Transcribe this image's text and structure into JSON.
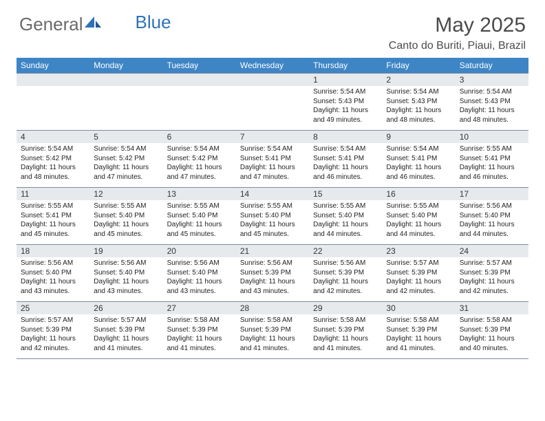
{
  "logo": {
    "part1": "General",
    "part2": "Blue"
  },
  "title": "May 2025",
  "location": "Canto do Buriti, Piaui, Brazil",
  "colors": {
    "header_bg": "#3e85c6",
    "header_text": "#ffffff",
    "num_row_bg": "#e7eaed",
    "border": "#7a8aa0",
    "logo_gray": "#6a6a6a",
    "logo_blue": "#2d72b8"
  },
  "day_names": [
    "Sunday",
    "Monday",
    "Tuesday",
    "Wednesday",
    "Thursday",
    "Friday",
    "Saturday"
  ],
  "weeks": [
    [
      {
        "n": "",
        "sr": "",
        "ss": "",
        "dl": ""
      },
      {
        "n": "",
        "sr": "",
        "ss": "",
        "dl": ""
      },
      {
        "n": "",
        "sr": "",
        "ss": "",
        "dl": ""
      },
      {
        "n": "",
        "sr": "",
        "ss": "",
        "dl": ""
      },
      {
        "n": "1",
        "sr": "5:54 AM",
        "ss": "5:43 PM",
        "dl": "11 hours and 49 minutes."
      },
      {
        "n": "2",
        "sr": "5:54 AM",
        "ss": "5:43 PM",
        "dl": "11 hours and 48 minutes."
      },
      {
        "n": "3",
        "sr": "5:54 AM",
        "ss": "5:43 PM",
        "dl": "11 hours and 48 minutes."
      }
    ],
    [
      {
        "n": "4",
        "sr": "5:54 AM",
        "ss": "5:42 PM",
        "dl": "11 hours and 48 minutes."
      },
      {
        "n": "5",
        "sr": "5:54 AM",
        "ss": "5:42 PM",
        "dl": "11 hours and 47 minutes."
      },
      {
        "n": "6",
        "sr": "5:54 AM",
        "ss": "5:42 PM",
        "dl": "11 hours and 47 minutes."
      },
      {
        "n": "7",
        "sr": "5:54 AM",
        "ss": "5:41 PM",
        "dl": "11 hours and 47 minutes."
      },
      {
        "n": "8",
        "sr": "5:54 AM",
        "ss": "5:41 PM",
        "dl": "11 hours and 46 minutes."
      },
      {
        "n": "9",
        "sr": "5:54 AM",
        "ss": "5:41 PM",
        "dl": "11 hours and 46 minutes."
      },
      {
        "n": "10",
        "sr": "5:55 AM",
        "ss": "5:41 PM",
        "dl": "11 hours and 46 minutes."
      }
    ],
    [
      {
        "n": "11",
        "sr": "5:55 AM",
        "ss": "5:41 PM",
        "dl": "11 hours and 45 minutes."
      },
      {
        "n": "12",
        "sr": "5:55 AM",
        "ss": "5:40 PM",
        "dl": "11 hours and 45 minutes."
      },
      {
        "n": "13",
        "sr": "5:55 AM",
        "ss": "5:40 PM",
        "dl": "11 hours and 45 minutes."
      },
      {
        "n": "14",
        "sr": "5:55 AM",
        "ss": "5:40 PM",
        "dl": "11 hours and 45 minutes."
      },
      {
        "n": "15",
        "sr": "5:55 AM",
        "ss": "5:40 PM",
        "dl": "11 hours and 44 minutes."
      },
      {
        "n": "16",
        "sr": "5:55 AM",
        "ss": "5:40 PM",
        "dl": "11 hours and 44 minutes."
      },
      {
        "n": "17",
        "sr": "5:56 AM",
        "ss": "5:40 PM",
        "dl": "11 hours and 44 minutes."
      }
    ],
    [
      {
        "n": "18",
        "sr": "5:56 AM",
        "ss": "5:40 PM",
        "dl": "11 hours and 43 minutes."
      },
      {
        "n": "19",
        "sr": "5:56 AM",
        "ss": "5:40 PM",
        "dl": "11 hours and 43 minutes."
      },
      {
        "n": "20",
        "sr": "5:56 AM",
        "ss": "5:40 PM",
        "dl": "11 hours and 43 minutes."
      },
      {
        "n": "21",
        "sr": "5:56 AM",
        "ss": "5:39 PM",
        "dl": "11 hours and 43 minutes."
      },
      {
        "n": "22",
        "sr": "5:56 AM",
        "ss": "5:39 PM",
        "dl": "11 hours and 42 minutes."
      },
      {
        "n": "23",
        "sr": "5:57 AM",
        "ss": "5:39 PM",
        "dl": "11 hours and 42 minutes."
      },
      {
        "n": "24",
        "sr": "5:57 AM",
        "ss": "5:39 PM",
        "dl": "11 hours and 42 minutes."
      }
    ],
    [
      {
        "n": "25",
        "sr": "5:57 AM",
        "ss": "5:39 PM",
        "dl": "11 hours and 42 minutes."
      },
      {
        "n": "26",
        "sr": "5:57 AM",
        "ss": "5:39 PM",
        "dl": "11 hours and 41 minutes."
      },
      {
        "n": "27",
        "sr": "5:58 AM",
        "ss": "5:39 PM",
        "dl": "11 hours and 41 minutes."
      },
      {
        "n": "28",
        "sr": "5:58 AM",
        "ss": "5:39 PM",
        "dl": "11 hours and 41 minutes."
      },
      {
        "n": "29",
        "sr": "5:58 AM",
        "ss": "5:39 PM",
        "dl": "11 hours and 41 minutes."
      },
      {
        "n": "30",
        "sr": "5:58 AM",
        "ss": "5:39 PM",
        "dl": "11 hours and 41 minutes."
      },
      {
        "n": "31",
        "sr": "5:58 AM",
        "ss": "5:39 PM",
        "dl": "11 hours and 40 minutes."
      }
    ]
  ],
  "labels": {
    "sunrise": "Sunrise: ",
    "sunset": "Sunset: ",
    "daylight": "Daylight: "
  }
}
